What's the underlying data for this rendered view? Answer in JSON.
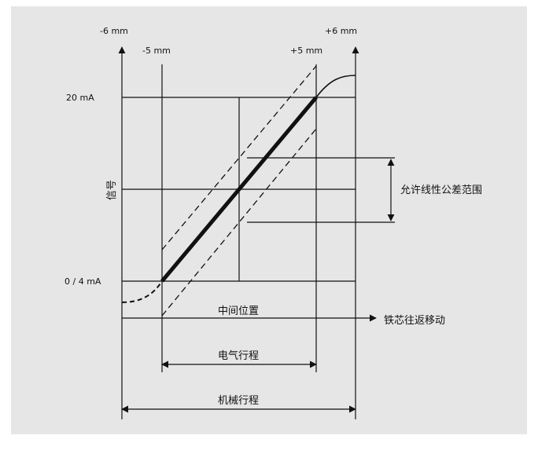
{
  "diagram": {
    "background_color": "#e6e6e6",
    "line_color": "#111111",
    "labels": {
      "minus6": "-6 mm",
      "plus6": "+6 mm",
      "minus5": "-5 mm",
      "plus5": "+5 mm",
      "signal_20": "20 mA",
      "signal_0_4": "0 / 4 mA",
      "signal_axis": "信号",
      "tolerance_band": "允许线性公差范围",
      "middle_position": "中间位置",
      "core_motion": "铁芯往返移动",
      "electrical_stroke": "电气行程",
      "mechanical_stroke": "机械行程"
    }
  }
}
